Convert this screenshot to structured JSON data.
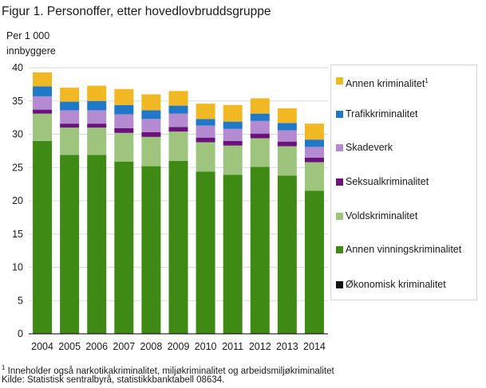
{
  "title": "Figur 1. Personoffer, etter hovedlovbruddsgruppe",
  "ylabel_line1": "Per 1 000",
  "ylabel_line2": "innbyggere",
  "footnote": {
    "marker": "1",
    "text": " Inneholder også narkotikakriminalitet, miljøkriminalitet og arbeidsmiljøkriminalitet",
    "source": "Kilde: Statistisk sentralbyrå, statistikkbanktabell  08634."
  },
  "legend": {
    "items": [
      {
        "label": "Annen kriminalitet",
        "sup": "1",
        "color": "#f0b823"
      },
      {
        "label": "Trafikkriminalitet",
        "sup": "",
        "color": "#1f78c8"
      },
      {
        "label": "Skadeverk",
        "sup": "",
        "color": "#b48bd0"
      },
      {
        "label": "Seksualkriminalitet",
        "sup": "",
        "color": "#6a137b"
      },
      {
        "label": "Voldskriminalitet",
        "sup": "",
        "color": "#9ec57e"
      },
      {
        "label": "Annen vinningskriminalitet",
        "sup": "",
        "color": "#3f8a14"
      },
      {
        "label": "Økonomisk kriminalitet",
        "sup": "",
        "color": "#111111"
      }
    ]
  },
  "chart_data": {
    "type": "bar",
    "stacked": true,
    "title": "Figur 1. Personoffer, etter hovedlovbruddsgruppe",
    "ylabel": "Per 1 000 innbyggere",
    "xlabel": "",
    "ylim": [
      0,
      40
    ],
    "yticks": [
      0,
      5,
      10,
      15,
      20,
      25,
      30,
      35,
      40
    ],
    "grid": true,
    "legend_position": "right",
    "categories": [
      "2004",
      "2005",
      "2006",
      "2007",
      "2008",
      "2009",
      "2010",
      "2011",
      "2012",
      "2013",
      "2014"
    ],
    "series": [
      {
        "name": "Økonomisk kriminalitet",
        "color": "#111111",
        "values": [
          0.1,
          0.1,
          0.1,
          0.1,
          0.1,
          0.1,
          0.1,
          0.1,
          0.1,
          0.1,
          0.1
        ]
      },
      {
        "name": "Annen vinningskriminalitet",
        "color": "#3f8a14",
        "values": [
          28.9,
          26.8,
          26.8,
          25.8,
          25.1,
          25.9,
          24.3,
          23.8,
          25.0,
          23.7,
          21.4
        ]
      },
      {
        "name": "Voldskriminalitet",
        "color": "#9ec57e",
        "values": [
          4.1,
          4.1,
          4.1,
          4.3,
          4.4,
          4.4,
          4.4,
          4.4,
          4.3,
          4.4,
          4.3
        ]
      },
      {
        "name": "Seksualkriminalitet",
        "color": "#6a137b",
        "values": [
          0.6,
          0.6,
          0.6,
          0.7,
          0.7,
          0.7,
          0.7,
          0.7,
          0.7,
          0.7,
          0.7
        ]
      },
      {
        "name": "Skadeverk",
        "color": "#b48bd0",
        "values": [
          2.0,
          2.0,
          2.0,
          2.1,
          2.0,
          2.0,
          1.8,
          1.8,
          1.9,
          1.7,
          1.6
        ]
      },
      {
        "name": "Trafikkriminalitet",
        "color": "#1f78c8",
        "values": [
          1.5,
          1.3,
          1.4,
          1.4,
          1.3,
          1.2,
          1.0,
          1.1,
          1.1,
          1.1,
          1.1
        ]
      },
      {
        "name": "Annen kriminalitet",
        "color": "#f0b823",
        "values": [
          2.1,
          2.1,
          2.3,
          2.4,
          2.4,
          2.2,
          2.3,
          2.5,
          2.3,
          2.2,
          2.4
        ]
      }
    ]
  }
}
